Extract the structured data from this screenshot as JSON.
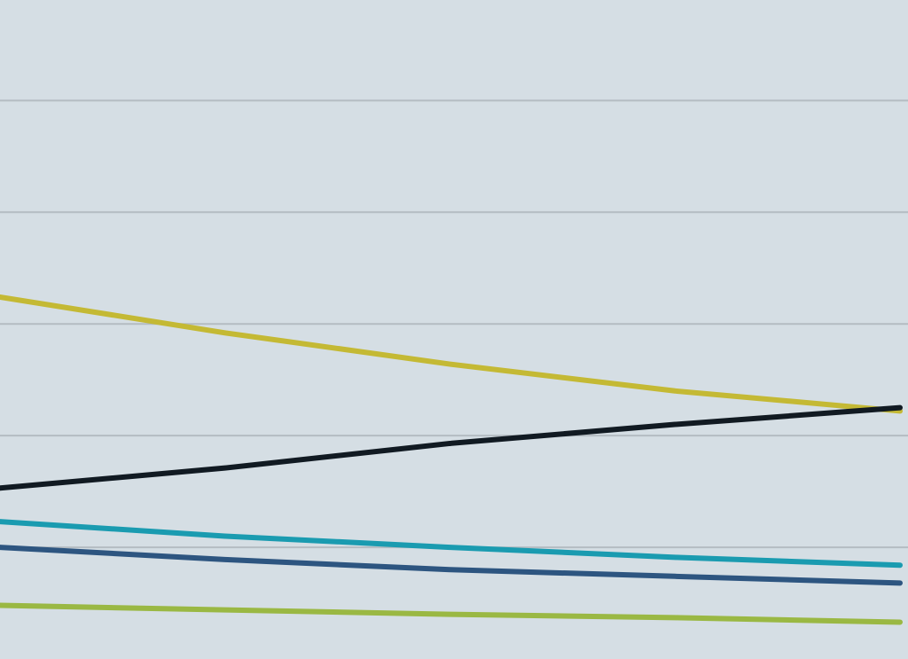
{
  "chart_data": {
    "type": "line",
    "categories": [
      null,
      null,
      null,
      null,
      null
    ],
    "ylim": [
      0,
      5.9
    ],
    "yticks": [
      1,
      2,
      3,
      4,
      5
    ],
    "grid": true,
    "series": [
      {
        "color": "#c4b934",
        "values": [
          3.24,
          2.92,
          2.64,
          2.4,
          2.22
        ]
      },
      {
        "color": "#111a22",
        "values": [
          1.53,
          1.71,
          1.93,
          2.1,
          2.25
        ]
      },
      {
        "color": "#1a9bb0",
        "values": [
          1.23,
          1.1,
          1.0,
          0.91,
          0.84
        ]
      },
      {
        "color": "#2d5580",
        "values": [
          1.0,
          0.89,
          0.8,
          0.74,
          0.68
        ]
      },
      {
        "color": "#9ab843",
        "values": [
          0.48,
          0.44,
          0.4,
          0.37,
          0.33
        ]
      }
    ]
  }
}
